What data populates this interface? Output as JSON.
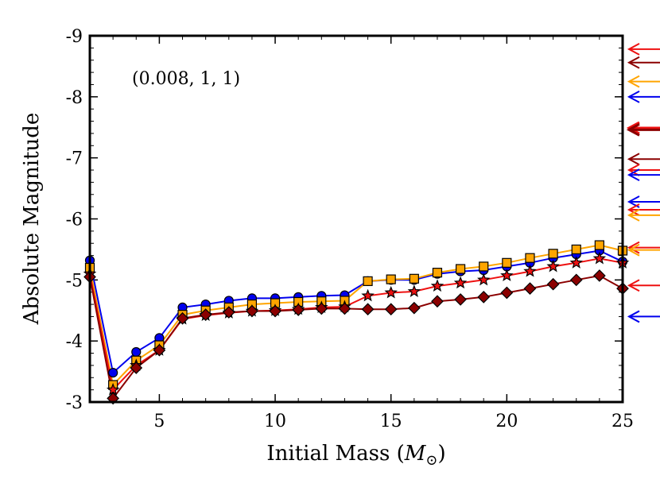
{
  "chart_data": {
    "type": "line",
    "annotation": "(0.008, 1, 1)",
    "xlabel": "Initial Mass (M⊙)",
    "xlabel_main": "Initial Mass (",
    "xlabel_M": "M",
    "xlabel_sub": "⊙",
    "xlabel_close": ")",
    "ylabel": "Absolute Magnitude",
    "xlim": [
      2,
      25
    ],
    "ylim": [
      -3,
      -9
    ],
    "xticks": [
      5,
      10,
      15,
      20,
      25
    ],
    "xtick_labels": [
      "5",
      "10",
      "15",
      "20",
      "25"
    ],
    "yticks": [
      -3,
      -4,
      -5,
      -6,
      -7,
      -8,
      -9
    ],
    "ytick_labels": [
      "-3",
      "-4",
      "-5",
      "-6",
      "-7",
      "-8",
      "-9"
    ],
    "x": [
      2,
      3,
      4,
      5,
      6,
      7,
      8,
      9,
      10,
      11,
      12,
      13,
      14,
      15,
      16,
      17,
      18,
      19,
      20,
      21,
      22,
      23,
      24,
      25
    ],
    "series": [
      {
        "name": "blue circles",
        "color": "#0000ee",
        "marker": "circle",
        "values": [
          -5.32,
          -3.48,
          -3.82,
          -4.05,
          -4.55,
          -4.6,
          -4.66,
          -4.7,
          -4.7,
          -4.72,
          -4.74,
          -4.75,
          -4.98,
          -5.0,
          -5.0,
          -5.1,
          -5.14,
          -5.16,
          -5.22,
          -5.28,
          -5.36,
          -5.42,
          -5.48,
          -5.3
        ]
      },
      {
        "name": "orange squares",
        "color": "#ffa500",
        "marker": "square",
        "values": [
          -5.2,
          -3.28,
          -3.68,
          -3.93,
          -4.43,
          -4.5,
          -4.55,
          -4.6,
          -4.62,
          -4.64,
          -4.65,
          -4.66,
          -4.98,
          -5.01,
          -5.02,
          -5.12,
          -5.18,
          -5.22,
          -5.28,
          -5.36,
          -5.43,
          -5.5,
          -5.57,
          -5.48
        ]
      },
      {
        "name": "red stars",
        "color": "#ee1111",
        "marker": "star",
        "values": [
          -5.1,
          -3.2,
          -3.6,
          -3.85,
          -4.36,
          -4.42,
          -4.46,
          -4.49,
          -4.5,
          -4.52,
          -4.55,
          -4.56,
          -4.74,
          -4.79,
          -4.81,
          -4.9,
          -4.95,
          -5.0,
          -5.07,
          -5.14,
          -5.22,
          -5.28,
          -5.35,
          -5.28
        ]
      },
      {
        "name": "dark red diamonds",
        "color": "#8b0000",
        "marker": "diamond",
        "values": [
          -5.05,
          -3.06,
          -3.56,
          -3.85,
          -4.37,
          -4.43,
          -4.47,
          -4.49,
          -4.49,
          -4.51,
          -4.53,
          -4.53,
          -4.52,
          -4.52,
          -4.54,
          -4.65,
          -4.68,
          -4.72,
          -4.79,
          -4.86,
          -4.93,
          -5.0,
          -5.07,
          -4.86
        ]
      }
    ],
    "arrows": [
      {
        "value": -8.78,
        "color": "#ee1111",
        "weight": 2
      },
      {
        "value": -8.56,
        "color": "#8b0000",
        "weight": 2
      },
      {
        "value": -8.25,
        "color": "#ffa500",
        "weight": 2
      },
      {
        "value": -8.0,
        "color": "#0000ee",
        "weight": 2
      },
      {
        "value": -7.49,
        "color": "#ee1111",
        "weight": 3
      },
      {
        "value": -7.46,
        "color": "#8b0000",
        "weight": 3
      },
      {
        "value": -6.98,
        "color": "#8b0000",
        "weight": 2
      },
      {
        "value": -6.8,
        "color": "#ee1111",
        "weight": 2
      },
      {
        "value": -6.72,
        "color": "#0000ee",
        "weight": 2
      },
      {
        "value": -6.28,
        "color": "#0000ee",
        "weight": 2
      },
      {
        "value": -6.15,
        "color": "#ee1111",
        "weight": 2
      },
      {
        "value": -6.06,
        "color": "#ffa500",
        "weight": 2
      },
      {
        "value": -5.53,
        "color": "#ee1111",
        "weight": 2
      },
      {
        "value": -5.49,
        "color": "#ffa500",
        "weight": 2
      },
      {
        "value": -4.91,
        "color": "#ee1111",
        "weight": 2
      },
      {
        "value": -4.4,
        "color": "#0000ee",
        "weight": 2
      }
    ]
  }
}
